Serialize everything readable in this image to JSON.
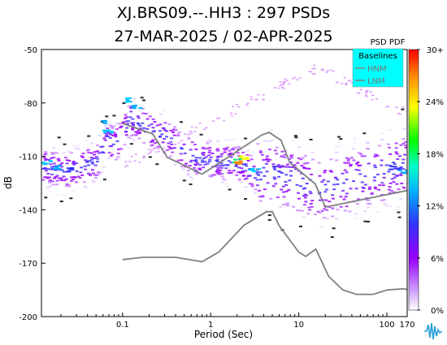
{
  "header": {
    "title_line1": "XJ.BRS09.--.HH3 : 297 PSDs",
    "title_line2": "27-MAR-2025 / 02-APR-2025"
  },
  "colors": {
    "background": "#ffffff",
    "plot_background": "#ffffff",
    "nhnm_color": "#808080",
    "nlnm_color": "#808080",
    "legend_bg": "#00ffff",
    "colormap": [
      "#ffffff",
      "#e8e8e8",
      "#9900ff",
      "#3333ff",
      "#00ccff",
      "#00ff66",
      "#ffff00",
      "#ff8800",
      "#ff0000"
    ]
  },
  "chart_data": {
    "type": "heatmap",
    "xlabel": "Period (Sec)",
    "ylabel": "dB",
    "x_scale": "log",
    "xlim": [
      0.012,
      170
    ],
    "ylim": [
      -200,
      -50
    ],
    "x_ticks": [
      {
        "value": 0.1,
        "label": "0.1"
      },
      {
        "value": 1,
        "label": "1"
      },
      {
        "value": 10,
        "label": "10"
      },
      {
        "value": 100,
        "label": "100"
      },
      {
        "value": 170,
        "label": "170"
      }
    ],
    "y_ticks": [
      -50,
      -80,
      -110,
      -140,
      -170,
      -200
    ],
    "colorbar": {
      "title": "PSD PDF",
      "ticks": [
        "0%",
        "6%",
        "12%",
        "18%",
        "24%",
        "30+"
      ],
      "range": [
        0,
        30
      ]
    },
    "legend": {
      "title": "Baselines",
      "placement": "top-right",
      "entries": [
        "HNM",
        "LNM"
      ]
    },
    "series": [
      {
        "name": "HNM",
        "x": [
          0.1,
          0.22,
          0.32,
          0.8,
          3.8,
          4.6,
          6.3,
          7.9,
          15.4,
          20,
          354
        ],
        "y": [
          -91.5,
          -97.4,
          -110.5,
          -120,
          -98,
          -96.5,
          -101,
          -113.5,
          -125.5,
          -138.5,
          -126
        ]
      },
      {
        "name": "LNM",
        "x": [
          0.1,
          0.17,
          0.4,
          0.8,
          1.24,
          2.4,
          4.3,
          5,
          6,
          10,
          12,
          15.6,
          21.9,
          31.6,
          45,
          70,
          101,
          154,
          328
        ],
        "y": [
          -168,
          -166.7,
          -166.7,
          -169.2,
          -163.7,
          -148.6,
          -141.1,
          -141.1,
          -149,
          -163.8,
          -166.2,
          -162.1,
          -177.5,
          -185,
          -187.5,
          -187.5,
          -185,
          -184.4,
          -187.5
        ]
      }
    ]
  }
}
